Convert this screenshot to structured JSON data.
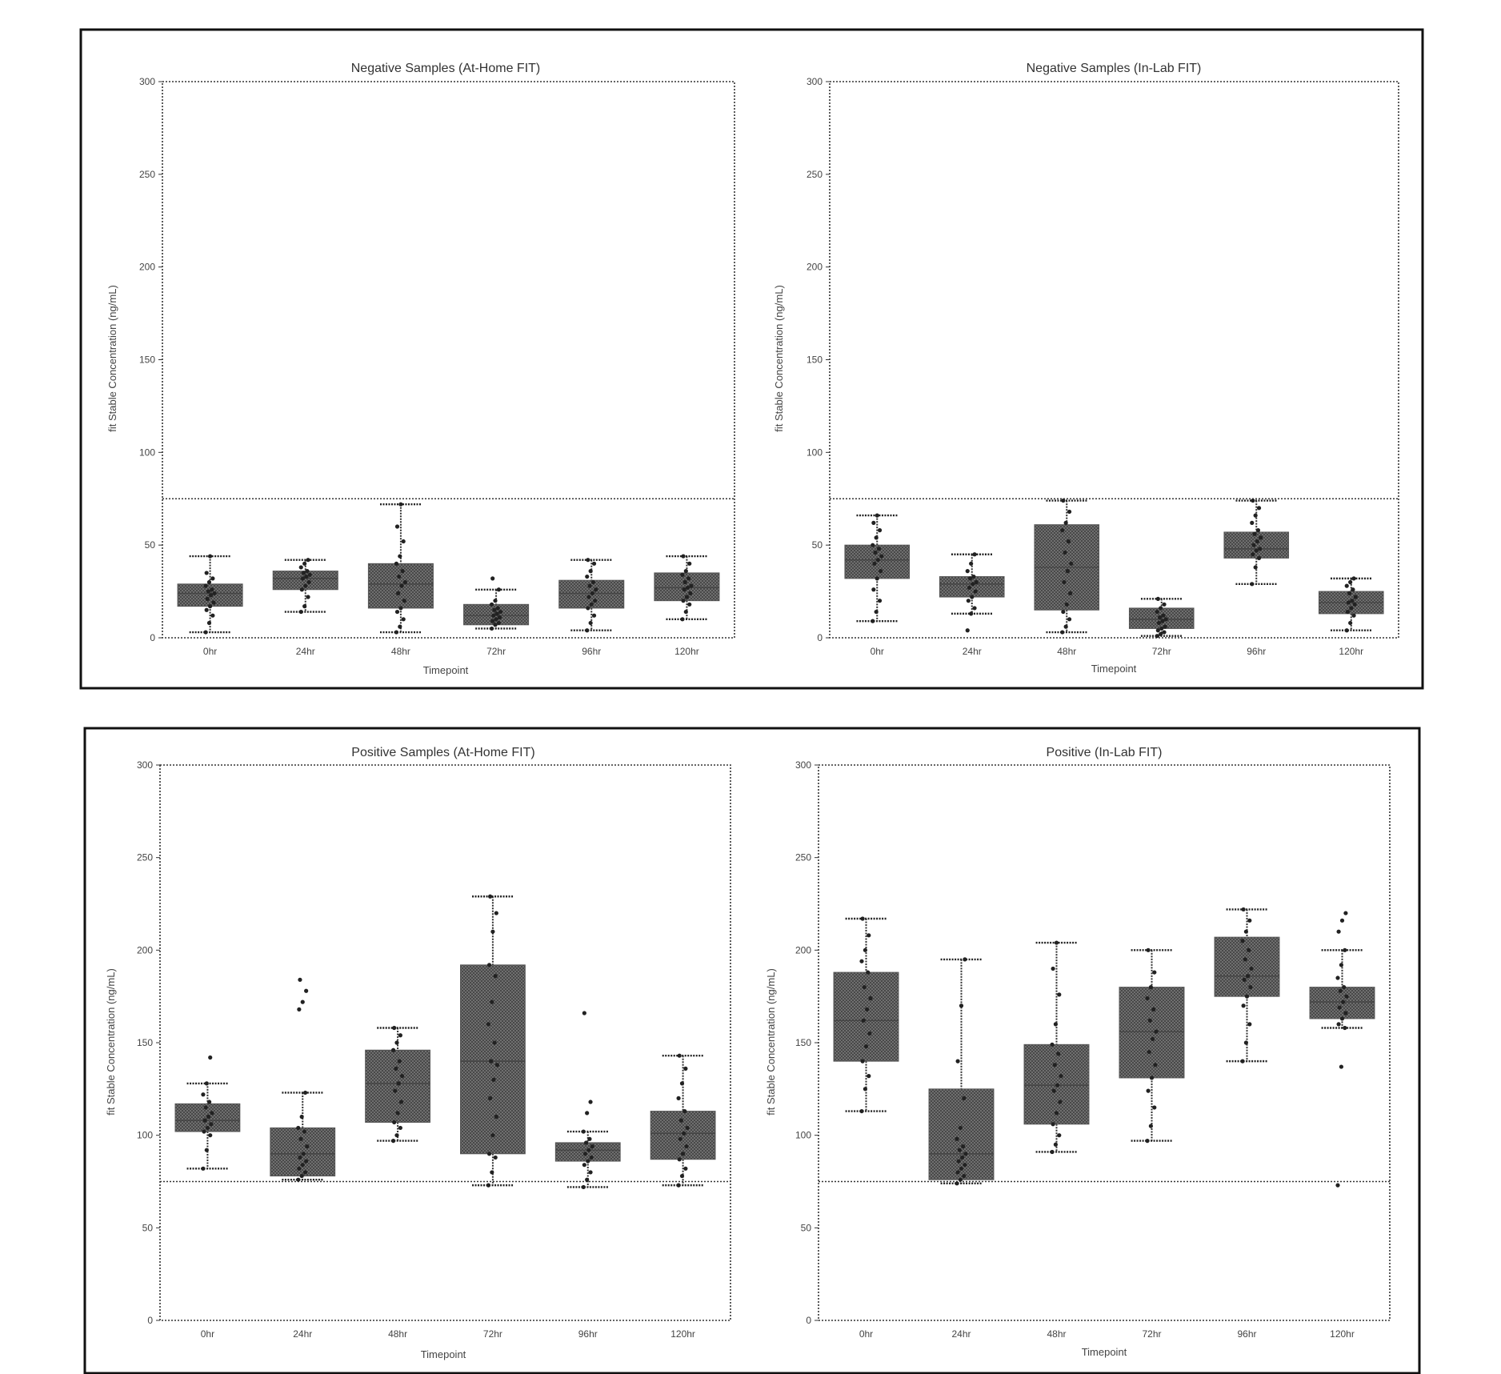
{
  "colors": {
    "box_fill": "#777777",
    "box_pattern": "#555555",
    "frame": "#111111",
    "dots": "#222222"
  },
  "chart_data": [
    {
      "type": "box",
      "title": "Negative Samples (At-Home FIT)",
      "xlabel": "Timepoint",
      "ylabel": "fit Stable Concentration (ng/mL)",
      "ylim": [
        0,
        300
      ],
      "yticks": [
        0,
        50,
        100,
        150,
        200,
        250,
        300
      ],
      "categories": [
        "0hr",
        "24hr",
        "48hr",
        "72hr",
        "96hr",
        "120hr"
      ],
      "threshold": 75,
      "boxes": [
        {
          "q1": 17,
          "median": 24,
          "q3": 29,
          "wlow": 3,
          "whigh": 44,
          "points": [
            3,
            8,
            12,
            15,
            17,
            19,
            21,
            23,
            24,
            25,
            26,
            28,
            30,
            32,
            35,
            44
          ]
        },
        {
          "q1": 26,
          "median": 32,
          "q3": 36,
          "wlow": 14,
          "whigh": 42,
          "points": [
            14,
            17,
            22,
            26,
            28,
            30,
            32,
            33,
            34,
            35,
            36,
            38,
            40,
            42
          ]
        },
        {
          "q1": 16,
          "median": 29,
          "q3": 40,
          "wlow": 3,
          "whigh": 72,
          "points": [
            3,
            6,
            10,
            14,
            16,
            20,
            24,
            28,
            30,
            33,
            36,
            40,
            44,
            52,
            60,
            72
          ]
        },
        {
          "q1": 7,
          "median": 12,
          "q3": 18,
          "wlow": 5,
          "whigh": 26,
          "points": [
            5,
            7,
            8,
            9,
            10,
            11,
            12,
            13,
            14,
            15,
            16,
            18,
            20,
            26,
            32
          ]
        },
        {
          "q1": 16,
          "median": 24,
          "q3": 31,
          "wlow": 4,
          "whigh": 42,
          "points": [
            4,
            8,
            12,
            16,
            18,
            20,
            22,
            24,
            26,
            28,
            30,
            33,
            36,
            40,
            42
          ]
        },
        {
          "q1": 20,
          "median": 27,
          "q3": 35,
          "wlow": 10,
          "whigh": 44,
          "points": [
            10,
            14,
            18,
            20,
            22,
            24,
            26,
            27,
            28,
            30,
            32,
            34,
            36,
            40,
            44
          ]
        }
      ]
    },
    {
      "type": "box",
      "title": "Negative Samples (In-Lab FIT)",
      "xlabel": "Timepoint",
      "ylabel": "fit Stable Concentration (ng/mL)",
      "ylim": [
        0,
        300
      ],
      "yticks": [
        0,
        50,
        100,
        150,
        200,
        250,
        300
      ],
      "categories": [
        "0hr",
        "24hr",
        "48hr",
        "72hr",
        "96hr",
        "120hr"
      ],
      "threshold": 75,
      "boxes": [
        {
          "q1": 32,
          "median": 42,
          "q3": 50,
          "wlow": 9,
          "whigh": 66,
          "points": [
            9,
            14,
            20,
            26,
            32,
            36,
            40,
            42,
            44,
            46,
            48,
            50,
            54,
            58,
            62,
            66
          ]
        },
        {
          "q1": 22,
          "median": 29,
          "q3": 33,
          "wlow": 13,
          "whigh": 45,
          "points": [
            4,
            13,
            16,
            20,
            22,
            25,
            27,
            29,
            30,
            32,
            33,
            36,
            40,
            45
          ]
        },
        {
          "q1": 15,
          "median": 38,
          "q3": 61,
          "wlow": 3,
          "whigh": 74,
          "points": [
            3,
            6,
            10,
            14,
            18,
            24,
            30,
            36,
            40,
            46,
            52,
            58,
            62,
            68,
            74
          ]
        },
        {
          "q1": 5,
          "median": 10,
          "q3": 16,
          "wlow": 1,
          "whigh": 21,
          "points": [
            1,
            2,
            3,
            4,
            5,
            6,
            8,
            9,
            10,
            11,
            12,
            14,
            16,
            18,
            21
          ]
        },
        {
          "q1": 43,
          "median": 48,
          "q3": 57,
          "wlow": 29,
          "whigh": 74,
          "points": [
            29,
            38,
            43,
            45,
            47,
            48,
            50,
            52,
            54,
            56,
            58,
            62,
            66,
            70,
            74
          ]
        },
        {
          "q1": 13,
          "median": 19,
          "q3": 25,
          "wlow": 4,
          "whigh": 32,
          "points": [
            4,
            8,
            12,
            14,
            16,
            18,
            19,
            20,
            22,
            24,
            26,
            28,
            30,
            32
          ]
        }
      ]
    },
    {
      "type": "box",
      "title": "Positive Samples (At-Home FIT)",
      "xlabel": "Timepoint",
      "ylabel": "fit Stable Concentration (ng/mL)",
      "ylim": [
        0,
        300
      ],
      "yticks": [
        0,
        50,
        100,
        150,
        200,
        250,
        300
      ],
      "categories": [
        "0hr",
        "24hr",
        "48hr",
        "72hr",
        "96hr",
        "120hr"
      ],
      "threshold": 75,
      "boxes": [
        {
          "q1": 102,
          "median": 108,
          "q3": 117,
          "wlow": 82,
          "whigh": 128,
          "points": [
            82,
            92,
            100,
            102,
            104,
            106,
            108,
            110,
            112,
            115,
            118,
            122,
            128,
            142
          ]
        },
        {
          "q1": 78,
          "median": 90,
          "q3": 104,
          "wlow": 76,
          "whigh": 123,
          "points": [
            76,
            78,
            80,
            82,
            84,
            86,
            88,
            90,
            94,
            98,
            102,
            104,
            110,
            123,
            168,
            172,
            178,
            184
          ]
        },
        {
          "q1": 107,
          "median": 128,
          "q3": 146,
          "wlow": 97,
          "whigh": 158,
          "points": [
            97,
            100,
            104,
            107,
            112,
            118,
            124,
            128,
            132,
            136,
            140,
            146,
            150,
            154,
            158
          ]
        },
        {
          "q1": 90,
          "median": 140,
          "q3": 192,
          "wlow": 73,
          "whigh": 229,
          "points": [
            73,
            80,
            88,
            90,
            100,
            110,
            120,
            130,
            138,
            140,
            150,
            160,
            172,
            186,
            192,
            210,
            220,
            229
          ]
        },
        {
          "q1": 86,
          "median": 92,
          "q3": 96,
          "wlow": 72,
          "whigh": 102,
          "points": [
            72,
            76,
            80,
            84,
            86,
            88,
            90,
            92,
            94,
            96,
            98,
            102,
            112,
            118,
            166
          ]
        },
        {
          "q1": 87,
          "median": 101,
          "q3": 113,
          "wlow": 73,
          "whigh": 143,
          "points": [
            73,
            78,
            82,
            87,
            90,
            94,
            98,
            101,
            104,
            108,
            113,
            120,
            128,
            136,
            143
          ]
        }
      ]
    },
    {
      "type": "box",
      "title": "Positive (In-Lab FIT)",
      "xlabel": "Timepoint",
      "ylabel": "fit Stable Concentration (ng/mL)",
      "ylim": [
        0,
        300
      ],
      "yticks": [
        0,
        50,
        100,
        150,
        200,
        250,
        300
      ],
      "categories": [
        "0hr",
        "24hr",
        "48hr",
        "72hr",
        "96hr",
        "120hr"
      ],
      "threshold": 75,
      "boxes": [
        {
          "q1": 140,
          "median": 162,
          "q3": 188,
          "wlow": 113,
          "whigh": 217,
          "points": [
            113,
            125,
            132,
            140,
            148,
            155,
            162,
            168,
            174,
            180,
            188,
            194,
            200,
            208,
            217
          ]
        },
        {
          "q1": 76,
          "median": 90,
          "q3": 125,
          "wlow": 74,
          "whigh": 195,
          "points": [
            74,
            76,
            78,
            80,
            82,
            84,
            86,
            88,
            90,
            92,
            94,
            98,
            104,
            120,
            140,
            170,
            195
          ]
        },
        {
          "q1": 106,
          "median": 127,
          "q3": 149,
          "wlow": 91,
          "whigh": 204,
          "points": [
            91,
            95,
            100,
            106,
            112,
            118,
            124,
            127,
            132,
            138,
            144,
            149,
            160,
            176,
            190,
            204
          ]
        },
        {
          "q1": 131,
          "median": 156,
          "q3": 180,
          "wlow": 97,
          "whigh": 200,
          "points": [
            97,
            105,
            115,
            124,
            131,
            138,
            145,
            152,
            156,
            162,
            168,
            174,
            180,
            188,
            200
          ]
        },
        {
          "q1": 175,
          "median": 186,
          "q3": 207,
          "wlow": 140,
          "whigh": 222,
          "points": [
            140,
            150,
            160,
            170,
            175,
            180,
            184,
            186,
            190,
            195,
            200,
            205,
            210,
            216,
            222
          ]
        },
        {
          "q1": 163,
          "median": 172,
          "q3": 180,
          "wlow": 158,
          "whigh": 200,
          "points": [
            73,
            137,
            158,
            160,
            163,
            166,
            169,
            172,
            175,
            178,
            180,
            185,
            192,
            200,
            210,
            216,
            220
          ]
        }
      ]
    }
  ]
}
